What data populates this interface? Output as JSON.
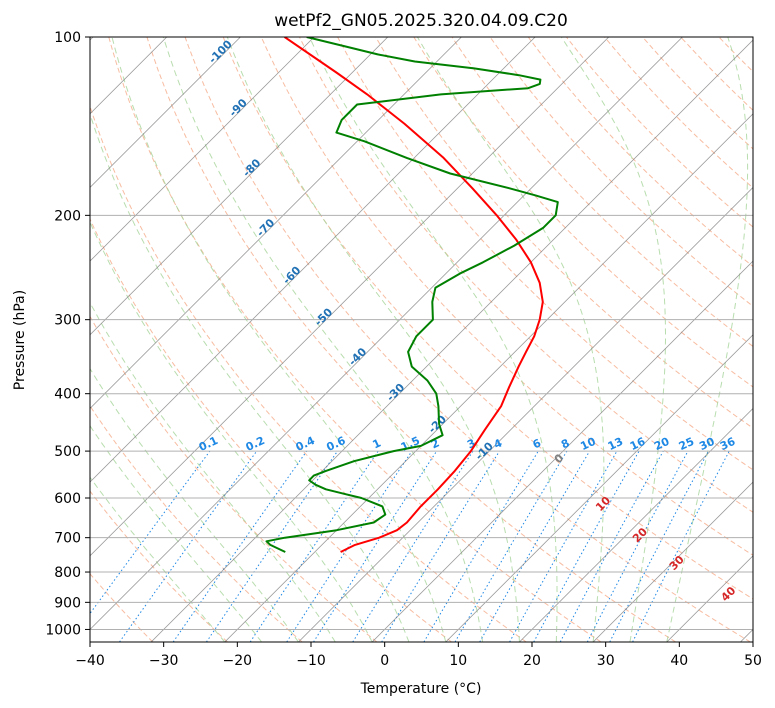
{
  "chart_data": {
    "type": "line",
    "title": "wetPf2_GN05.2025.320.04.09.C20",
    "xlabel": "Temperature (°C)",
    "ylabel": "Pressure (hPa)",
    "xlim": [
      -40,
      50
    ],
    "ylim": [
      1050,
      100
    ],
    "y_scale": "log",
    "grid": true,
    "x_ticks": [
      -40,
      -30,
      -20,
      -10,
      0,
      10,
      20,
      30,
      40,
      50
    ],
    "x_tick_labels": [
      "−40",
      "−30",
      "−20",
      "−10",
      "0",
      "10",
      "20",
      "30",
      "40",
      "50"
    ],
    "y_ticks": [
      1000,
      900,
      800,
      700,
      600,
      500,
      400,
      300,
      200,
      100
    ],
    "y_tick_labels": [
      "1000",
      "900",
      "800",
      "700",
      "600",
      "500",
      "400",
      "300",
      "200",
      "100"
    ],
    "background_lines": {
      "isotherm_color": "#808080",
      "dry_adiabat_color": "#f4a582",
      "moist_adiabat_color": "#a6d49a",
      "mixing_ratio_color": "#1e88e5",
      "adiabat_base_color": "#d9c4a6"
    },
    "series": [
      {
        "name": "Temperature",
        "color": "#ff0000",
        "pressure": [
          740,
          720,
          700,
          680,
          660,
          620,
          580,
          540,
          500,
          460,
          420,
          390,
          360,
          340,
          320,
          300,
          280,
          260,
          240,
          220,
          200,
          180,
          160,
          140,
          125,
          115,
          100
        ],
        "temperature": [
          -16.5,
          -15.5,
          -13.2,
          -11.8,
          -11.5,
          -11.8,
          -11.8,
          -12,
          -12.5,
          -13.5,
          -14.5,
          -16,
          -17.5,
          -18.5,
          -19.5,
          -21,
          -23,
          -26,
          -30,
          -35,
          -41,
          -48,
          -56,
          -66,
          -75,
          -82,
          -94
        ]
      },
      {
        "name": "Dewpoint",
        "color": "#008000",
        "pressure": [
          740,
          720,
          710,
          700,
          680,
          660,
          640,
          620,
          600,
          590,
          580,
          570,
          560,
          550,
          540,
          520,
          500,
          490,
          470,
          450,
          420,
          400,
          380,
          360,
          340,
          320,
          300,
          280,
          265,
          250,
          240,
          225,
          210,
          200,
          190,
          185,
          180,
          170,
          160,
          150,
          145,
          138,
          130,
          125,
          122,
          120,
          118,
          116,
          113,
          110,
          107,
          104,
          100
        ],
        "dewpoint": [
          -24,
          -27,
          -28,
          -26,
          -20,
          -16,
          -15.5,
          -17,
          -21,
          -24,
          -27,
          -29,
          -30.5,
          -30.5,
          -29.5,
          -27,
          -23,
          -20,
          -18.5,
          -20.5,
          -23,
          -25,
          -28,
          -32,
          -34.5,
          -35.5,
          -35.5,
          -38,
          -39.5,
          -38,
          -36.5,
          -34.5,
          -33,
          -33,
          -34.5,
          -38.5,
          -43,
          -53,
          -61,
          -69,
          -74,
          -75,
          -75,
          -65,
          -54,
          -53,
          -53.5,
          -57,
          -64,
          -73,
          -79,
          -84,
          -91
        ]
      }
    ],
    "isopleth_labels": {
      "mixing_ratio": [
        "0.1",
        "0.2",
        "0.4",
        "0.6",
        "1",
        "1.5",
        "2",
        "3",
        "4",
        "6",
        "8",
        "10",
        "13",
        "16",
        "20",
        "25",
        "30",
        "36"
      ],
      "moist_adiabat": [
        "-100",
        "-90",
        "-80",
        "-70",
        "-60",
        "-50",
        "-40",
        "-30",
        "-20",
        "-10"
      ],
      "dry_adiabat": [
        "0",
        "10",
        "20",
        "30",
        "40"
      ]
    }
  }
}
